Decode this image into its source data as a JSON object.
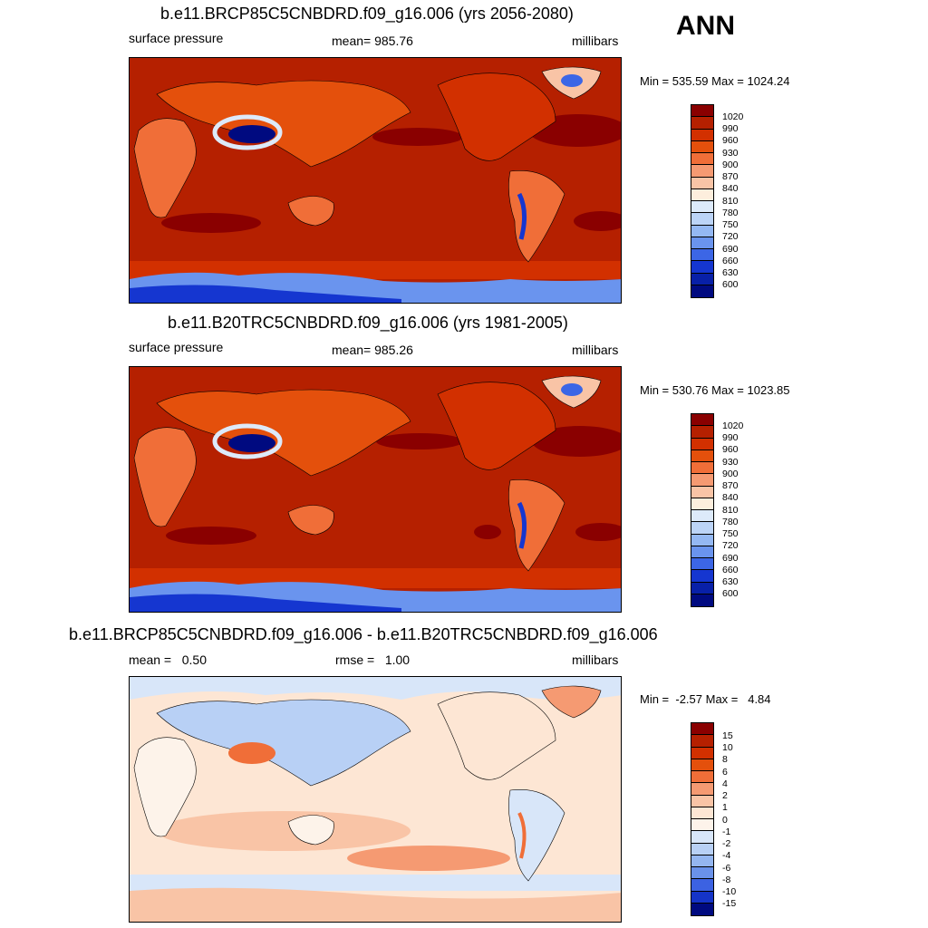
{
  "season": "ANN",
  "panels": [
    {
      "title": "b.e11.BRCP85C5CNBDRD.f09_g16.006 (yrs 2056-2080)",
      "left_label": "surface pressure",
      "center_label": "mean= 985.76",
      "units": "millibars",
      "minmax": "Min = 535.59 Max = 1024.24",
      "legend_labels": [
        "1020",
        "990",
        "960",
        "930",
        "900",
        "870",
        "840",
        "810",
        "780",
        "750",
        "720",
        "690",
        "660",
        "630",
        "600"
      ]
    },
    {
      "title": "b.e11.B20TRC5CNBDRD.f09_g16.006 (yrs 1981-2005)",
      "left_label": "surface pressure",
      "center_label": "mean= 985.26",
      "units": "millibars",
      "minmax": "Min = 530.76 Max = 1023.85",
      "legend_labels": [
        "1020",
        "990",
        "960",
        "930",
        "900",
        "870",
        "840",
        "810",
        "780",
        "750",
        "720",
        "690",
        "660",
        "630",
        "600"
      ]
    },
    {
      "title": "b.e11.BRCP85C5CNBDRD.f09_g16.006 - b.e11.B20TRC5CNBDRD.f09_g16.006",
      "left_label": "mean =   0.50",
      "center_label": "rmse =   1.00",
      "units": "millibars",
      "minmax": "Min =  -2.57 Max =   4.84",
      "legend_labels": [
        "15",
        "10",
        "8",
        "6",
        "4",
        "2",
        "1",
        "0",
        "-1",
        "-2",
        "-4",
        "-6",
        "-8",
        "-10",
        "-15"
      ]
    }
  ],
  "colors": {
    "abs_scale": [
      "#8a0000",
      "#b52000",
      "#d23000",
      "#e4500c",
      "#f06e38",
      "#f59a72",
      "#f9c4a6",
      "#fdeedd",
      "#ddeafa",
      "#bcd4f7",
      "#94b8f3",
      "#6a94ee",
      "#3c66e6",
      "#1536d0",
      "#0820a8",
      "#000a80"
    ],
    "diff_scale": [
      "#8a0000",
      "#b52000",
      "#d23000",
      "#e4500c",
      "#f06e38",
      "#f59a72",
      "#f9c4a6",
      "#fde6d4",
      "#fdf3ea",
      "#d8e6f9",
      "#b8d0f5",
      "#94b6f0",
      "#6a92ea",
      "#3c62e2",
      "#1534c8",
      "#000a80"
    ]
  }
}
